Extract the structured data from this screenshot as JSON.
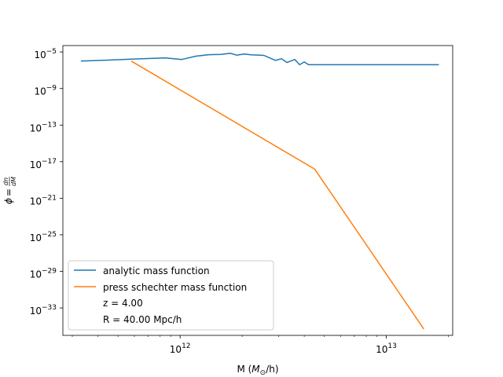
{
  "chart_data": {
    "type": "line",
    "x_scale": "log",
    "y_scale": "log",
    "xlim": [
      270000000000.0,
      21000000000000.0
    ],
    "ylim": [
      1e-36,
      5e-05
    ],
    "xlabel": {
      "prefix": "M (",
      "math": "M",
      "sub": "⊙",
      "suffix": "/h)"
    },
    "ylabel": {
      "phi": "ϕ",
      "eq": " = ",
      "num": "dn",
      "den": "dM"
    },
    "x_ticks": [
      {
        "base": "10",
        "exp": "12",
        "value": 1000000000000.0
      },
      {
        "base": "10",
        "exp": "13",
        "value": 10000000000000.0
      }
    ],
    "y_ticks": [
      {
        "base": "10",
        "exp": "−5",
        "value": 1e-05
      },
      {
        "base": "10",
        "exp": "−9",
        "value": 1e-09
      },
      {
        "base": "10",
        "exp": "−13",
        "value": 1e-13
      },
      {
        "base": "10",
        "exp": "−17",
        "value": 1e-17
      },
      {
        "base": "10",
        "exp": "−21",
        "value": 1e-21
      },
      {
        "base": "10",
        "exp": "−25",
        "value": 1e-25
      },
      {
        "base": "10",
        "exp": "−29",
        "value": 1e-29
      },
      {
        "base": "10",
        "exp": "−33",
        "value": 1e-33
      }
    ],
    "series": [
      {
        "name": "analytic mass function",
        "color": "#1f77b4",
        "points": [
          [
            330000000000.0,
            1e-06
          ],
          [
            450000000000.0,
            1.3e-06
          ],
          [
            600000000000.0,
            1.7e-06
          ],
          [
            850000000000.0,
            2.2e-06
          ],
          [
            1020000000000.0,
            1.5e-06
          ],
          [
            1200000000000.0,
            3.5e-06
          ],
          [
            1380000000000.0,
            5e-06
          ],
          [
            1580000000000.0,
            5.5e-06
          ],
          [
            1750000000000.0,
            7e-06
          ],
          [
            1880000000000.0,
            4.5e-06
          ],
          [
            2050000000000.0,
            6e-06
          ],
          [
            2200000000000.0,
            4.8e-06
          ],
          [
            2550000000000.0,
            4.2e-06
          ],
          [
            2750000000000.0,
            2e-06
          ],
          [
            2900000000000.0,
            1.2e-06
          ],
          [
            3100000000000.0,
            1.8e-06
          ],
          [
            3300000000000.0,
            7e-07
          ],
          [
            3600000000000.0,
            1.5e-06
          ],
          [
            3800000000000.0,
            4e-07
          ],
          [
            4000000000000.0,
            8e-07
          ],
          [
            4200000000000.0,
            4e-07
          ],
          [
            18000000000000.0,
            4e-07
          ]
        ]
      },
      {
        "name": "press schechter mass function",
        "color": "#ff7f0e",
        "points": [
          [
            580000000000.0,
            1e-06
          ],
          [
            4500000000000.0,
            1.5e-18
          ],
          [
            15200000000000.0,
            5e-36
          ]
        ]
      }
    ],
    "legend": {
      "placement": "lower left",
      "extra": [
        "z = 4.00",
        "R = 40.00 Mpc/h"
      ]
    }
  }
}
